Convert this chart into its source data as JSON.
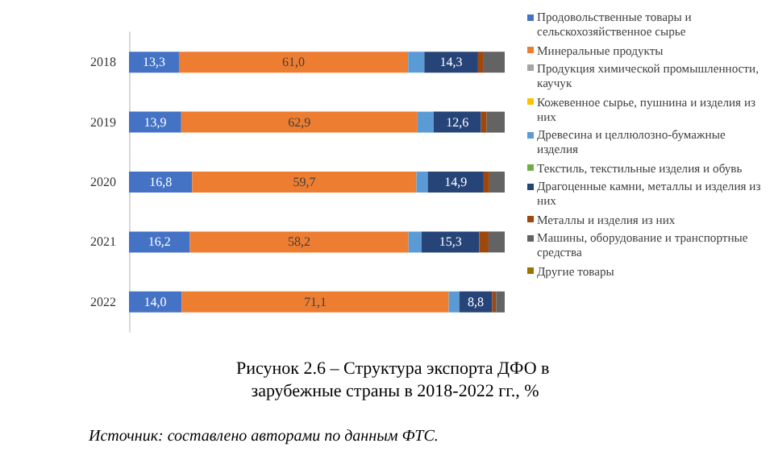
{
  "chart_data": {
    "type": "bar",
    "orientation": "horizontal",
    "stacked": true,
    "title": "Рисунок 2.6 – Структура экспорта ДФО в зарубежные страны в 2018-2022 гг., %",
    "annotations": [
      "Источник: составлено авторами по данным ФТС."
    ],
    "categories": [
      "2018",
      "2019",
      "2020",
      "2021",
      "2022"
    ],
    "xlim": [
      0,
      100
    ],
    "tick_labels": "y",
    "legend": "right",
    "series": [
      {
        "name": "Продовольственные товары и сельскохозяйственное сырье",
        "color": "#4472c4",
        "values": [
          13.3,
          13.9,
          16.8,
          16.2,
          14.0
        ],
        "value_labels": [
          "13,3",
          "13,9",
          "16,8",
          "16,2",
          "14,0"
        ]
      },
      {
        "name": "Минеральные продукты",
        "color": "#ed7d31",
        "values": [
          61.0,
          62.9,
          59.7,
          58.2,
          71.1
        ],
        "value_labels": [
          "61,0",
          "62,9",
          "59,7",
          "58,2",
          "71,1"
        ]
      },
      {
        "name": "Продукция химической промышленности, каучук",
        "color": "#a5a5a5",
        "values": [
          null,
          null,
          null,
          null,
          null
        ]
      },
      {
        "name": "Кожевенное сырье, пушнина и изделия из них",
        "color": "#ffc000",
        "values": [
          null,
          null,
          null,
          null,
          null
        ]
      },
      {
        "name": "Древесина и целлюлозно-бумажные изделия",
        "color": "#5b9bd5",
        "values": [
          4.3,
          4.3,
          3.0,
          3.5,
          2.8
        ]
      },
      {
        "name": "Текстиль, текстильные изделия и обувь",
        "color": "#70ad47",
        "values": [
          null,
          null,
          null,
          null,
          null
        ]
      },
      {
        "name": "Драгоценные камни, металлы и изделия из них",
        "color": "#264478",
        "values": [
          14.3,
          12.6,
          14.9,
          15.3,
          8.8
        ],
        "value_labels": [
          "14,3",
          "12,6",
          "14,9",
          "15,3",
          "8,8"
        ]
      },
      {
        "name": "Металлы и изделия из них",
        "color": "#9e480e",
        "values": [
          1.5,
          1.5,
          1.5,
          2.5,
          1.0
        ]
      },
      {
        "name": "Машины, оборудование и транспортные средства",
        "color": "#636363",
        "values": [
          5.6,
          4.8,
          4.1,
          4.3,
          2.3
        ]
      },
      {
        "name": "Другие товары",
        "color": "#997300",
        "values": [
          null,
          null,
          null,
          null,
          null
        ]
      }
    ]
  }
}
